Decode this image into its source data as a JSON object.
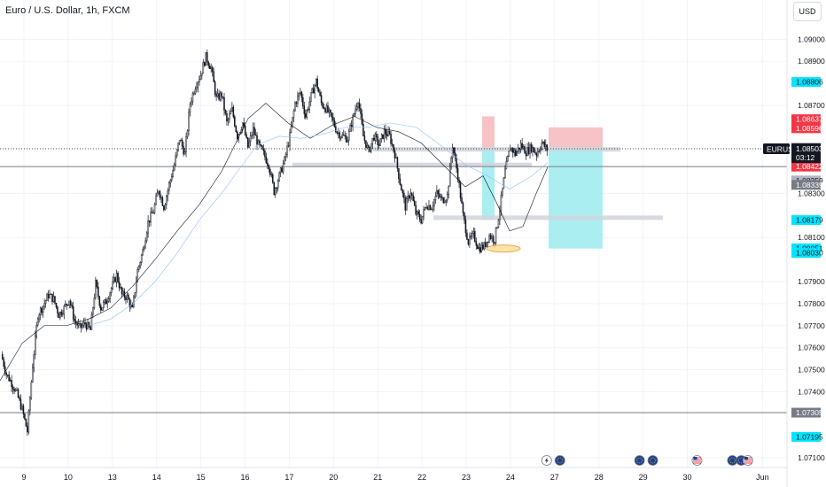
{
  "header": {
    "title": "Euro / U.S. Dollar, 1h, FXCM",
    "currency": "USD"
  },
  "chart_data": {
    "type": "candlestick",
    "symbol": "EURUSD",
    "timeframe": "1h",
    "y_axis": {
      "min": 1.0708,
      "max": 1.0913,
      "ticks": [
        "1.09000",
        "1.08900",
        "1.08700",
        "1.08300",
        "1.08100",
        "1.07900",
        "1.07800",
        "1.07700",
        "1.07600",
        "1.07500",
        "1.07400",
        "1.07100"
      ],
      "tick_values": [
        1.09,
        1.089,
        1.087,
        1.083,
        1.081,
        1.079,
        1.078,
        1.077,
        1.076,
        1.075,
        1.074,
        1.071
      ]
    },
    "x_axis": {
      "labels": [
        "9",
        "10",
        "13",
        "14",
        "15",
        "16",
        "17",
        "20",
        "21",
        "22",
        "23",
        "24",
        "27",
        "28",
        "29",
        "30",
        "Jun"
      ],
      "label_slots": [
        0,
        1,
        2,
        3,
        4,
        5,
        6,
        7,
        8,
        9,
        10,
        11,
        12,
        13,
        14,
        15,
        16.7
      ]
    },
    "price_badges": [
      {
        "text": "1.08806",
        "value": 1.08806,
        "bg": "#00e5ff",
        "fg": "#131722"
      },
      {
        "text": "1.08637",
        "value": 1.08637,
        "bg": "#f23645",
        "fg": "#ffffff"
      },
      {
        "text": "1.08596",
        "value": 1.08596,
        "bg": "#f23645",
        "fg": "#ffffff"
      },
      {
        "text": "1.08507",
        "value": 1.08507,
        "bg": "#787b86",
        "fg": "#ffffff"
      },
      {
        "text": "1.08501",
        "value": 1.08501,
        "bg": "#787b86",
        "fg": "#ffffff"
      },
      {
        "text": "1.08422",
        "value": 1.08422,
        "bg": "#f23645",
        "fg": "#ffffff"
      },
      {
        "text": "1.08359",
        "value": 1.08359,
        "bg": "#b2b5be",
        "fg": "#131722"
      },
      {
        "text": "1.08339",
        "value": 1.08339,
        "bg": "#787b86",
        "fg": "#ffffff"
      },
      {
        "text": "1.08179",
        "value": 1.08179,
        "bg": "#00e5ff",
        "fg": "#131722"
      },
      {
        "text": "1.08051",
        "value": 1.08051,
        "bg": "#00e5ff",
        "fg": "#131722"
      },
      {
        "text": "1.08030",
        "value": 1.0803,
        "bg": "#00e5ff",
        "fg": "#131722"
      },
      {
        "text": "1.07305",
        "value": 1.07305,
        "bg": "#787b86",
        "fg": "#ffffff"
      },
      {
        "text": "1.07195",
        "value": 1.07195,
        "bg": "#00e5ff",
        "fg": "#131722"
      }
    ],
    "current_price": {
      "symbol": "EURUSD",
      "price": "1.08503",
      "countdown": "03:12",
      "value": 1.08503
    },
    "horizontal_lines": [
      1.08422,
      1.07305
    ],
    "ohlc_path": [
      1.0757,
      1.0748,
      1.0744,
      1.0739,
      1.0732,
      1.0722,
      1.0752,
      1.0775,
      1.0779,
      1.0784,
      1.0782,
      1.0775,
      1.0778,
      1.0782,
      1.0772,
      1.0769,
      1.0771,
      1.0768,
      1.0789,
      1.0778,
      1.0781,
      1.0787,
      1.0793,
      1.0784,
      1.0783,
      1.0777,
      1.0795,
      1.0804,
      1.0817,
      1.0822,
      1.0832,
      1.0824,
      1.0834,
      1.0843,
      1.0855,
      1.0848,
      1.0871,
      1.0879,
      1.0884,
      1.0892,
      1.0887,
      1.0873,
      1.0875,
      1.0862,
      1.0868,
      1.0856,
      1.0862,
      1.0851,
      1.0859,
      1.0852,
      1.0848,
      1.0843,
      1.0831,
      1.0838,
      1.0845,
      1.0856,
      1.0871,
      1.0876,
      1.0865,
      1.0874,
      1.0881,
      1.0871,
      1.0868,
      1.0864,
      1.0858,
      1.0856,
      1.0855,
      1.0864,
      1.0873,
      1.0856,
      1.0849,
      1.0856,
      1.0852,
      1.0858,
      1.0856,
      1.0848,
      1.0835,
      1.0824,
      1.0831,
      1.0821,
      1.0818,
      1.0825,
      1.0824,
      1.083,
      1.0827,
      1.0829,
      1.0852,
      1.0838,
      1.082,
      1.0808,
      1.0811,
      1.0805,
      1.0806,
      1.0811,
      1.0809,
      1.0823,
      1.084,
      1.0851,
      1.0848,
      1.0852,
      1.0849,
      1.0851,
      1.0848,
      1.0853,
      1.085
    ],
    "ma_lines": [
      {
        "name": "",
        "color": "#131722",
        "width": 0.6,
        "points": [
          [
            0,
            1.0745
          ],
          [
            25,
            1.0762
          ],
          [
            50,
            1.077
          ],
          [
            75,
            1.077
          ],
          [
            100,
            1.0773
          ],
          [
            125,
            1.0778
          ],
          [
            150,
            1.0788
          ],
          [
            175,
            1.08
          ],
          [
            200,
            1.0813
          ],
          [
            225,
            1.0825
          ],
          [
            250,
            1.084
          ],
          [
            265,
            1.0852
          ],
          [
            280,
            1.0864
          ],
          [
            300,
            1.0871
          ],
          [
            325,
            1.0862
          ],
          [
            350,
            1.0855
          ],
          [
            375,
            1.0861
          ],
          [
            400,
            1.0865
          ],
          [
            425,
            1.086
          ],
          [
            450,
            1.0858
          ],
          [
            475,
            1.0853
          ],
          [
            500,
            1.0843
          ],
          [
            525,
            1.0833
          ],
          [
            545,
            1.0838
          ],
          [
            560,
            1.0826
          ],
          [
            575,
            1.0813
          ],
          [
            590,
            1.0815
          ],
          [
            605,
            1.083
          ],
          [
            618,
            1.0842
          ]
        ]
      },
      {
        "name": "",
        "color": "#90bff9",
        "width": 0.6,
        "points": [
          [
            100,
            1.077
          ],
          [
            125,
            1.0773
          ],
          [
            150,
            1.078
          ],
          [
            175,
            1.079
          ],
          [
            200,
            1.0803
          ],
          [
            225,
            1.0818
          ],
          [
            250,
            1.083
          ],
          [
            270,
            1.0841
          ],
          [
            290,
            1.0852
          ],
          [
            315,
            1.0856
          ],
          [
            340,
            1.0855
          ],
          [
            365,
            1.0857
          ],
          [
            390,
            1.086
          ],
          [
            415,
            1.086
          ],
          [
            440,
            1.0862
          ],
          [
            470,
            1.086
          ],
          [
            500,
            1.0851
          ],
          [
            525,
            1.0843
          ],
          [
            550,
            1.0838
          ],
          [
            575,
            1.0832
          ],
          [
            600,
            1.0838
          ],
          [
            618,
            1.0844
          ]
        ]
      }
    ],
    "zones": [
      {
        "type": "stop",
        "color": "#f7c3c6",
        "x1": 544,
        "x2": 558,
        "y1": 1.0865,
        "y2": 1.0851
      },
      {
        "type": "target",
        "color": "#aaeef2",
        "x1": 544,
        "x2": 558,
        "y1": 1.0851,
        "y2": 1.0818
      },
      {
        "type": "stop",
        "color": "#f7c3c6",
        "x1": 619,
        "x2": 680,
        "y1": 1.086,
        "y2": 1.0851
      },
      {
        "type": "target",
        "color": "#aaeef2",
        "x1": 619,
        "x2": 680,
        "y1": 1.0851,
        "y2": 1.0805
      }
    ],
    "grey_bands": [
      {
        "x1": 421,
        "x2": 700,
        "value": 1.085
      },
      {
        "x1": 330,
        "x2": 600,
        "value": 1.0843
      },
      {
        "x1": 489,
        "x2": 748,
        "value": 1.0819
      }
    ],
    "ellipse": {
      "cx": 568,
      "value": 1.0805,
      "rx": 19,
      "ry": 4
    },
    "event_icons": [
      {
        "slot": 11.9,
        "name": "lightning"
      },
      {
        "slot": 12.2,
        "name": "eu-flag"
      },
      {
        "slot": 14.0,
        "name": "eu-flag"
      },
      {
        "slot": 14.3,
        "name": "eu-flag"
      },
      {
        "slot": 15.3,
        "name": "us-flag"
      },
      {
        "slot": 16.1,
        "name": "eu-flag"
      },
      {
        "slot": 16.3,
        "name": "eu-flag"
      },
      {
        "slot": 16.45,
        "name": "us-flag"
      }
    ]
  }
}
